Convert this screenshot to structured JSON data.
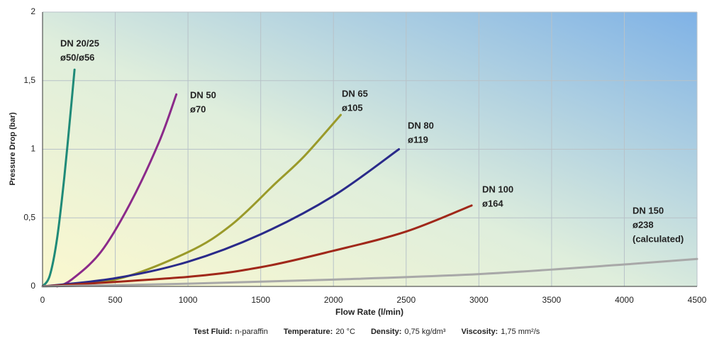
{
  "chart_data": {
    "type": "line",
    "x_label": "Flow Rate (l/min)",
    "y_label": "Pressure Drop (bar)",
    "xlim": [
      0,
      4500
    ],
    "xticks": [
      0,
      500,
      1000,
      1500,
      2000,
      2500,
      3000,
      3500,
      4000,
      4500
    ],
    "ylim": [
      0,
      2
    ],
    "yticks": [
      0,
      {
        "value": 0.5,
        "label": "0,5"
      },
      1,
      {
        "value": 1.5,
        "label": "1,5"
      },
      2
    ],
    "grid": true,
    "series": [
      {
        "name": "DN 20/25",
        "label_lines": [
          "ø50/ø56"
        ],
        "color": "#1f8a78",
        "x": [
          0,
          50,
          100,
          150,
          200,
          220
        ],
        "values": [
          0,
          0.08,
          0.35,
          0.8,
          1.35,
          1.58
        ]
      },
      {
        "name": "DN 50",
        "label_lines": [
          "ø70"
        ],
        "color": "#8b2a8a",
        "x": [
          100,
          200,
          400,
          600,
          800,
          920
        ],
        "values": [
          0,
          0.05,
          0.25,
          0.6,
          1.05,
          1.4
        ]
      },
      {
        "name": "DN 65",
        "label_lines": [
          "ø105"
        ],
        "color": "#9a9a2a",
        "x": [
          0,
          500,
          1000,
          1300,
          1600,
          1800,
          2050
        ],
        "values": [
          0,
          0.05,
          0.25,
          0.45,
          0.75,
          0.95,
          1.25
        ]
      },
      {
        "name": "DN 80",
        "label_lines": [
          "ø119"
        ],
        "color": "#2a2a8a",
        "x": [
          0,
          500,
          1000,
          1500,
          2000,
          2450
        ],
        "values": [
          0,
          0.06,
          0.18,
          0.38,
          0.66,
          1.0
        ]
      },
      {
        "name": "DN 100",
        "label_lines": [
          "ø164"
        ],
        "color": "#a0281a",
        "x": [
          0,
          1000,
          1500,
          2000,
          2500,
          2950
        ],
        "values": [
          0,
          0.07,
          0.14,
          0.26,
          0.4,
          0.59
        ]
      },
      {
        "name": "DN 150",
        "label_lines": [
          "ø238",
          "(calculated)"
        ],
        "color": "#a8a8a8",
        "x": [
          0,
          1000,
          2000,
          3000,
          4000,
          4500
        ],
        "values": [
          0,
          0.02,
          0.05,
          0.09,
          0.16,
          0.2
        ]
      }
    ],
    "footer": [
      {
        "label": "Test Fluid:",
        "value": "n-paraffin"
      },
      {
        "label": "Temperature:",
        "value": "20 °C"
      },
      {
        "label": "Density:",
        "value": "0,75 kg/dm³"
      },
      {
        "label": "Viscosity:",
        "value": "1,75 mm²/s"
      }
    ]
  }
}
